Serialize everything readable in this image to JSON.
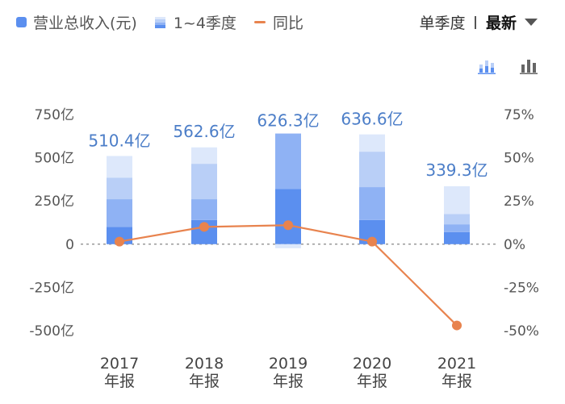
{
  "legend": {
    "revenue": "营业总收入(元)",
    "quarters": "1~4季度",
    "yoy": "同比"
  },
  "period": {
    "mode": "单季度",
    "selected": "最新"
  },
  "icons": {
    "stacked_bar": "stacked-bar-chart-icon",
    "bar": "bar-chart-icon"
  },
  "colors": {
    "q1": "#5b8fef",
    "q2": "#8fb2f4",
    "q3": "#b9cff7",
    "q4": "#dde8fb",
    "yoy_line": "#e8834e",
    "label": "#4c7ec8"
  },
  "chart_data": {
    "type": "bar",
    "categories": [
      [
        "2017",
        "年报"
      ],
      [
        "2018",
        "年报"
      ],
      [
        "2019",
        "年报"
      ],
      [
        "2020",
        "年报"
      ],
      [
        "2021",
        "年报"
      ]
    ],
    "y_left_ticks": [
      "750亿",
      "500亿",
      "250亿",
      "0",
      "-250亿",
      "-500亿"
    ],
    "y_right_ticks": [
      "75%",
      "50%",
      "25%",
      "0%",
      "-25%",
      "-50%"
    ],
    "ylim": [
      -500,
      750
    ],
    "ylim_right": [
      -50,
      75
    ],
    "series": [
      {
        "name": "1~4季度",
        "segments": [
          [
            100,
            160,
            125,
            125
          ],
          [
            140,
            120,
            205,
            95
          ],
          [
            320,
            320,
            0,
            0
          ],
          [
            140,
            190,
            205,
            100
          ],
          [
            70,
            45,
            60,
            160
          ]
        ]
      },
      {
        "name": "营业总收入(元)",
        "values": [
          510.4,
          562.6,
          626.3,
          636.6,
          339.3
        ],
        "labels": [
          "510.4亿",
          "562.6亿",
          "626.3亿",
          "636.6亿",
          "339.3亿"
        ]
      },
      {
        "name": "同比",
        "values": [
          1.5,
          10,
          11,
          1.5,
          -47
        ]
      }
    ]
  }
}
